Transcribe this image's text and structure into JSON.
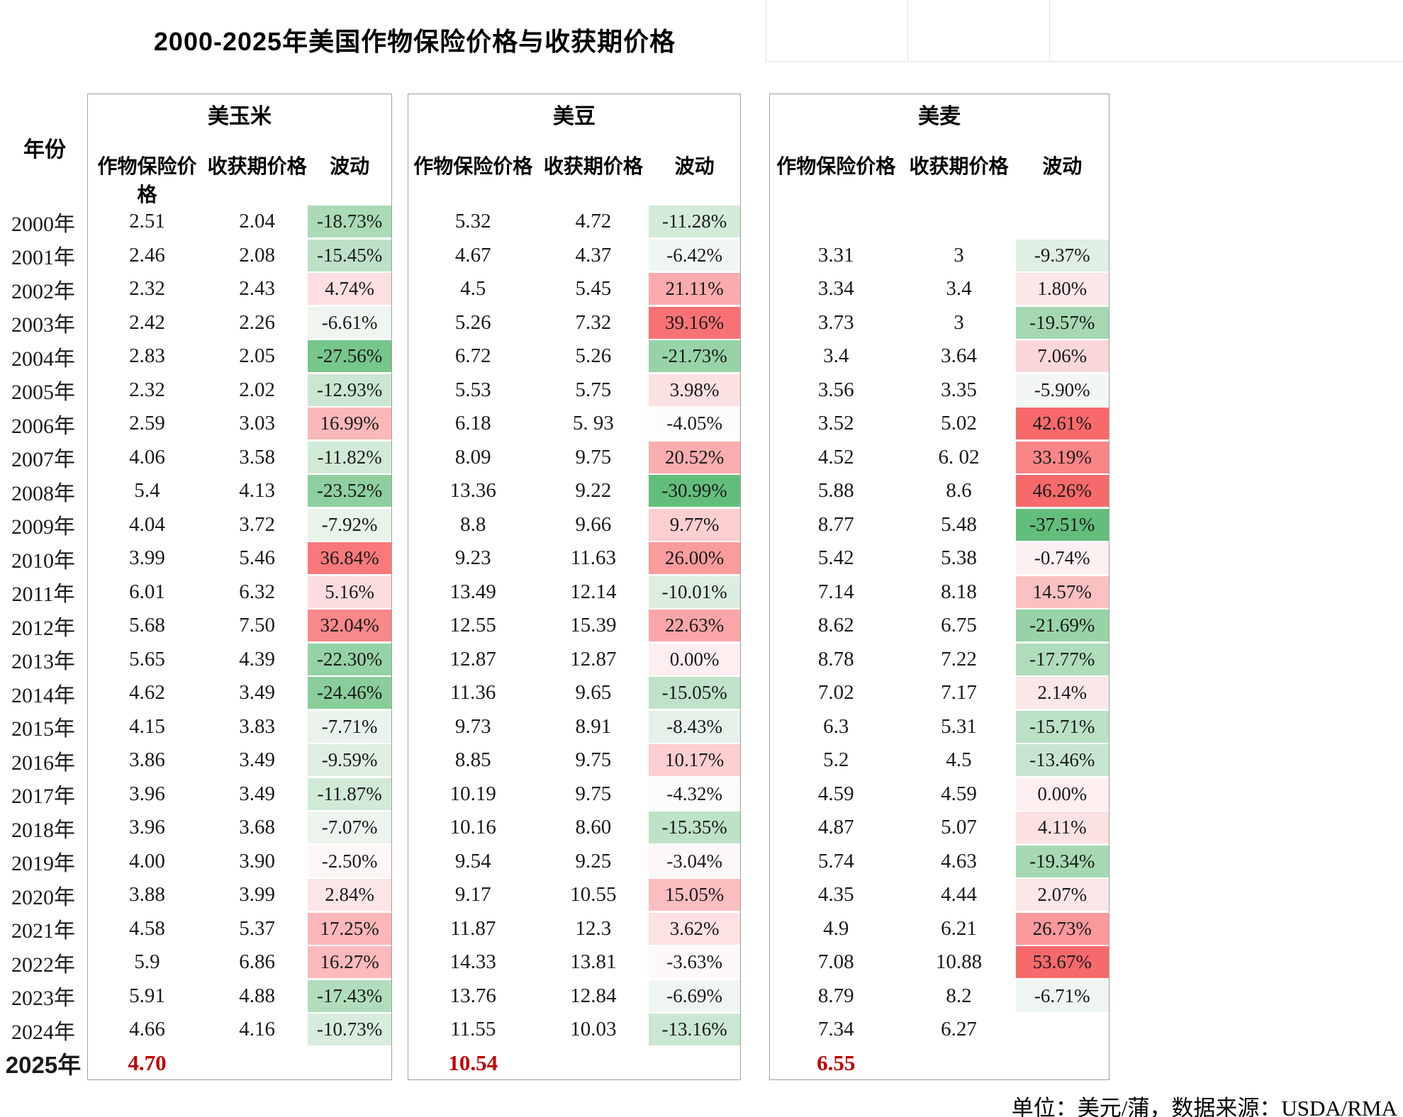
{
  "accent_red": "#c00000",
  "fluct_scale": {
    "green": "#63be7b",
    "white": "#fdfbfc",
    "red": "#f8696b",
    "min": -31,
    "mid": -4.2,
    "max": 42
  },
  "chart_data": {
    "type": "table",
    "title": "2000-2025年美国作物保险价格与收获期价格",
    "footer": "单位：美元/蒲，数据来源：USDA/RMA",
    "row_header": "年份",
    "sub_columns": {
      "insurance": "作物保险价格",
      "harvest": "收获期价格",
      "fluct": "波动"
    },
    "years": [
      "2000年",
      "2001年",
      "2002年",
      "2003年",
      "2004年",
      "2005年",
      "2006年",
      "2007年",
      "2008年",
      "2009年",
      "2010年",
      "2011年",
      "2012年",
      "2013年",
      "2014年",
      "2015年",
      "2016年",
      "2017年",
      "2018年",
      "2019年",
      "2020年",
      "2021年",
      "2022年",
      "2023年",
      "2024年",
      "2025年"
    ],
    "series": [
      {
        "name": "美玉米",
        "rows": [
          [
            "2.51",
            "2.04",
            "-18.73%"
          ],
          [
            "2.46",
            "2.08",
            "-15.45%"
          ],
          [
            "2.32",
            "2.43",
            "4.74%"
          ],
          [
            "2.42",
            "2.26",
            "-6.61%"
          ],
          [
            "2.83",
            "2.05",
            "-27.56%"
          ],
          [
            "2.32",
            "2.02",
            "-12.93%"
          ],
          [
            "2.59",
            "3.03",
            "16.99%"
          ],
          [
            "4.06",
            "3.58",
            "-11.82%"
          ],
          [
            "5.4",
            "4.13",
            "-23.52%"
          ],
          [
            "4.04",
            "3.72",
            "-7.92%"
          ],
          [
            "3.99",
            "5.46",
            "36.84%"
          ],
          [
            "6.01",
            "6.32",
            "5.16%"
          ],
          [
            "5.68",
            "7.50",
            "32.04%"
          ],
          [
            "5.65",
            "4.39",
            "-22.30%"
          ],
          [
            "4.62",
            "3.49",
            "-24.46%"
          ],
          [
            "4.15",
            "3.83",
            "-7.71%"
          ],
          [
            "3.86",
            "3.49",
            "-9.59%"
          ],
          [
            "3.96",
            "3.49",
            "-11.87%"
          ],
          [
            "3.96",
            "3.68",
            "-7.07%"
          ],
          [
            "4.00",
            "3.90",
            "-2.50%"
          ],
          [
            "3.88",
            "3.99",
            "2.84%"
          ],
          [
            "4.58",
            "5.37",
            "17.25%"
          ],
          [
            "5.9",
            "6.86",
            "16.27%"
          ],
          [
            "5.91",
            "4.88",
            "-17.43%"
          ],
          [
            "4.66",
            "4.16",
            "-10.73%"
          ],
          [
            "4.70",
            "",
            ""
          ]
        ]
      },
      {
        "name": "美豆",
        "rows": [
          [
            "5.32",
            "4.72",
            "-11.28%"
          ],
          [
            "4.67",
            "4.37",
            "-6.42%"
          ],
          [
            "4.5",
            "5.45",
            "21.11%"
          ],
          [
            "5.26",
            "7.32",
            "39.16%"
          ],
          [
            "6.72",
            "5.26",
            "-21.73%"
          ],
          [
            "5.53",
            "5.75",
            "3.98%"
          ],
          [
            "6.18",
            "5. 93",
            "-4.05%"
          ],
          [
            "8.09",
            "9.75",
            "20.52%"
          ],
          [
            "13.36",
            "9.22",
            "-30.99%"
          ],
          [
            "8.8",
            "9.66",
            "9.77%"
          ],
          [
            "9.23",
            "11.63",
            "26.00%"
          ],
          [
            "13.49",
            "12.14",
            "-10.01%"
          ],
          [
            "12.55",
            "15.39",
            "22.63%"
          ],
          [
            "12.87",
            "12.87",
            "0.00%"
          ],
          [
            "11.36",
            "9.65",
            "-15.05%"
          ],
          [
            "9.73",
            "8.91",
            "-8.43%"
          ],
          [
            "8.85",
            "9.75",
            "10.17%"
          ],
          [
            "10.19",
            "9.75",
            "-4.32%"
          ],
          [
            "10.16",
            "8.60",
            "-15.35%"
          ],
          [
            "9.54",
            "9.25",
            "-3.04%"
          ],
          [
            "9.17",
            "10.55",
            "15.05%"
          ],
          [
            "11.87",
            "12.3",
            "3.62%"
          ],
          [
            "14.33",
            "13.81",
            "-3.63%"
          ],
          [
            "13.76",
            "12.84",
            "-6.69%"
          ],
          [
            "11.55",
            "10.03",
            "-13.16%"
          ],
          [
            "10.54",
            "",
            ""
          ]
        ]
      },
      {
        "name": "美麦",
        "rows": [
          [
            "",
            "",
            ""
          ],
          [
            "3.31",
            "3",
            "-9.37%"
          ],
          [
            "3.34",
            "3.4",
            "1.80%"
          ],
          [
            "3.73",
            "3",
            "-19.57%"
          ],
          [
            "3.4",
            "3.64",
            "7.06%"
          ],
          [
            "3.56",
            "3.35",
            "-5.90%"
          ],
          [
            "3.52",
            "5.02",
            "42.61%"
          ],
          [
            "4.52",
            "6. 02",
            "33.19%"
          ],
          [
            "5.88",
            "8.6",
            "46.26%"
          ],
          [
            "8.77",
            "5.48",
            "-37.51%"
          ],
          [
            "5.42",
            "5.38",
            "-0.74%"
          ],
          [
            "7.14",
            "8.18",
            "14.57%"
          ],
          [
            "8.62",
            "6.75",
            "-21.69%"
          ],
          [
            "8.78",
            "7.22",
            "-17.77%"
          ],
          [
            "7.02",
            "7.17",
            "2.14%"
          ],
          [
            "6.3",
            "5.31",
            "-15.71%"
          ],
          [
            "5.2",
            "4.5",
            "-13.46%"
          ],
          [
            "4.59",
            "4.59",
            "0.00%"
          ],
          [
            "4.87",
            "5.07",
            "4.11%"
          ],
          [
            "5.74",
            "4.63",
            "-19.34%"
          ],
          [
            "4.35",
            "4.44",
            "2.07%"
          ],
          [
            "4.9",
            "6.21",
            "26.73%"
          ],
          [
            "7.08",
            "10.88",
            "53.67%"
          ],
          [
            "8.79",
            "8.2",
            "-6.71%"
          ],
          [
            "7.34",
            "6.27",
            ""
          ],
          [
            "6.55",
            "",
            ""
          ]
        ]
      }
    ]
  }
}
